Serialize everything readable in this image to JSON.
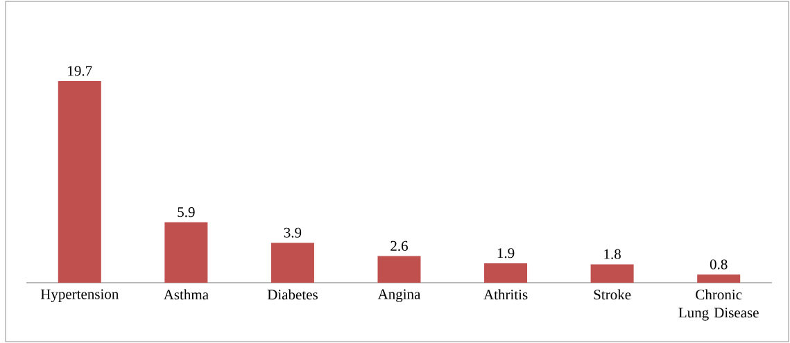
{
  "chart_data": {
    "type": "bar",
    "categories": [
      "Hypertension",
      "Asthma",
      "Diabetes",
      "Angina",
      "Athritis",
      "Stroke",
      "Chronic Lung Disease"
    ],
    "values": [
      19.7,
      5.9,
      3.9,
      2.6,
      1.9,
      1.8,
      0.8
    ],
    "color": "#c0504d",
    "data_labels": true,
    "tick_labels": "x"
  }
}
